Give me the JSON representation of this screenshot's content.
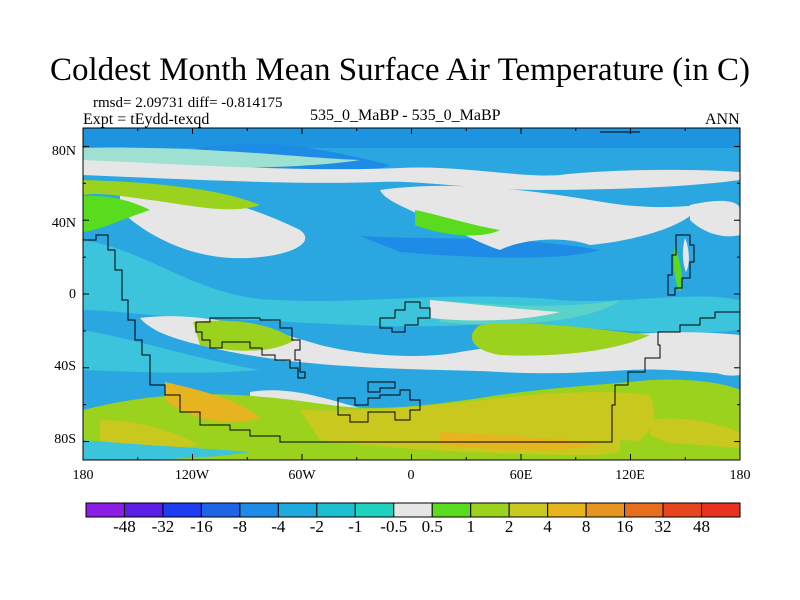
{
  "title": "Coldest Month Mean Surface Air Temperature (in C)",
  "stats": "rmsd= 2.09731  diff= -0.814175",
  "expt": "Expt = tEydd-texqd",
  "center_label": "535_0_MaBP - 535_0_MaBP",
  "season": "ANN",
  "chart_data": {
    "type": "heatmap",
    "title": "Coldest Month Mean Surface Air Temperature (in C)",
    "projection": "cylindrical-equidistant",
    "lon_range": [
      -180,
      180
    ],
    "lat_range": [
      -90,
      90
    ],
    "x_ticks": [
      "180",
      "120W",
      "60W",
      "0",
      "60E",
      "120E",
      "180"
    ],
    "x_tick_values": [
      -180,
      -120,
      -60,
      0,
      60,
      120,
      180
    ],
    "y_ticks": [
      "80N",
      "40N",
      "0",
      "40S",
      "80S"
    ],
    "y_tick_values": [
      80,
      40,
      0,
      -40,
      -80
    ],
    "colorbar": {
      "labels": [
        "-48",
        "-32",
        "-16",
        "-8",
        "-4",
        "-2",
        "-1",
        "-0.5",
        "0.5",
        "1",
        "2",
        "4",
        "8",
        "16",
        "32",
        "48"
      ],
      "colors": [
        "#8c1ee6",
        "#5a1ee6",
        "#1e3cf0",
        "#1e64e6",
        "#1e8ce6",
        "#1eaadc",
        "#1ebed2",
        "#1ed2be",
        "#e6e6e6",
        "#5adc1e",
        "#9bd21e",
        "#c8c81e",
        "#e6b41e",
        "#e6961e",
        "#e66e1e",
        "#e6461e",
        "#e6321e"
      ]
    }
  }
}
